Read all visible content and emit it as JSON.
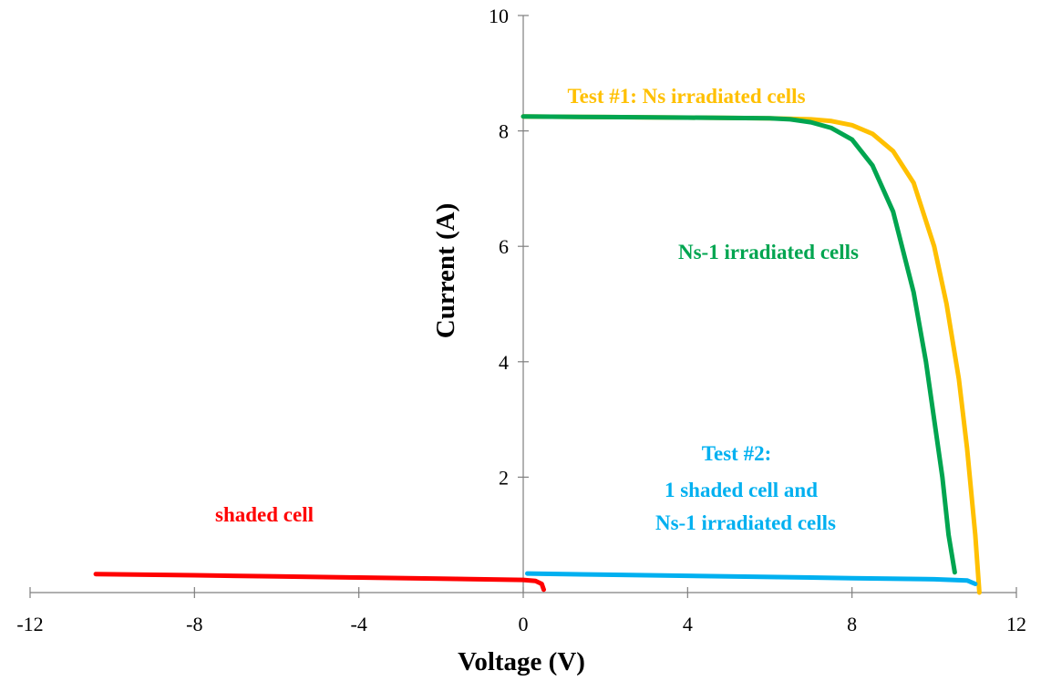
{
  "chart_data": {
    "type": "line",
    "title": "",
    "xlabel": "Voltage (V)",
    "ylabel": "Current (A)",
    "xlim": [
      -12,
      12
    ],
    "ylim": [
      0,
      10
    ],
    "x_ticks": [
      -12,
      -8,
      -4,
      0,
      4,
      8,
      12
    ],
    "y_ticks": [
      2,
      4,
      6,
      8,
      10
    ],
    "grid": false,
    "legend": "none",
    "series": [
      {
        "color": "#FFC000",
        "x": [
          0,
          2,
          4,
          6,
          7,
          7.5,
          8,
          8.5,
          9,
          9.5,
          10,
          10.3,
          10.6,
          10.8,
          11,
          11.1
        ],
        "y": [
          8.25,
          8.24,
          8.23,
          8.22,
          8.2,
          8.17,
          8.1,
          7.95,
          7.65,
          7.1,
          6.0,
          5.0,
          3.7,
          2.5,
          1.0,
          0.0
        ]
      },
      {
        "color": "#00A550",
        "x": [
          0,
          2,
          4,
          6,
          6.5,
          7,
          7.5,
          8,
          8.5,
          9,
          9.5,
          9.8,
          10,
          10.2,
          10.35,
          10.5
        ],
        "y": [
          8.25,
          8.24,
          8.23,
          8.22,
          8.2,
          8.15,
          8.05,
          7.85,
          7.4,
          6.6,
          5.2,
          4.0,
          3.0,
          2.0,
          1.0,
          0.35
        ]
      },
      {
        "color": "#00B0F0",
        "x": [
          0.1,
          2,
          4,
          6,
          8,
          10,
          10.8,
          11.0
        ],
        "y": [
          0.33,
          0.31,
          0.29,
          0.27,
          0.25,
          0.23,
          0.21,
          0.15
        ]
      },
      {
        "color": "#FF0000",
        "x": [
          -10.4,
          -8,
          -6,
          -4,
          -2,
          0,
          0.3,
          0.45,
          0.5
        ],
        "y": [
          0.32,
          0.3,
          0.28,
          0.26,
          0.24,
          0.22,
          0.2,
          0.15,
          0.05
        ]
      }
    ],
    "annotations": [
      {
        "text": "Test #1: Ns irradiated cells",
        "color": "#FFC000"
      },
      {
        "text": "Ns-1 irradiated cells",
        "color": "#00A550"
      },
      {
        "text": "Test #2:",
        "color": "#00B0F0"
      },
      {
        "text": "1 shaded cell and",
        "color": "#00B0F0"
      },
      {
        "text": "Ns-1 irradiated cells",
        "color": "#00B0F0"
      },
      {
        "text": "shaded cell",
        "color": "#FF0000"
      }
    ]
  }
}
